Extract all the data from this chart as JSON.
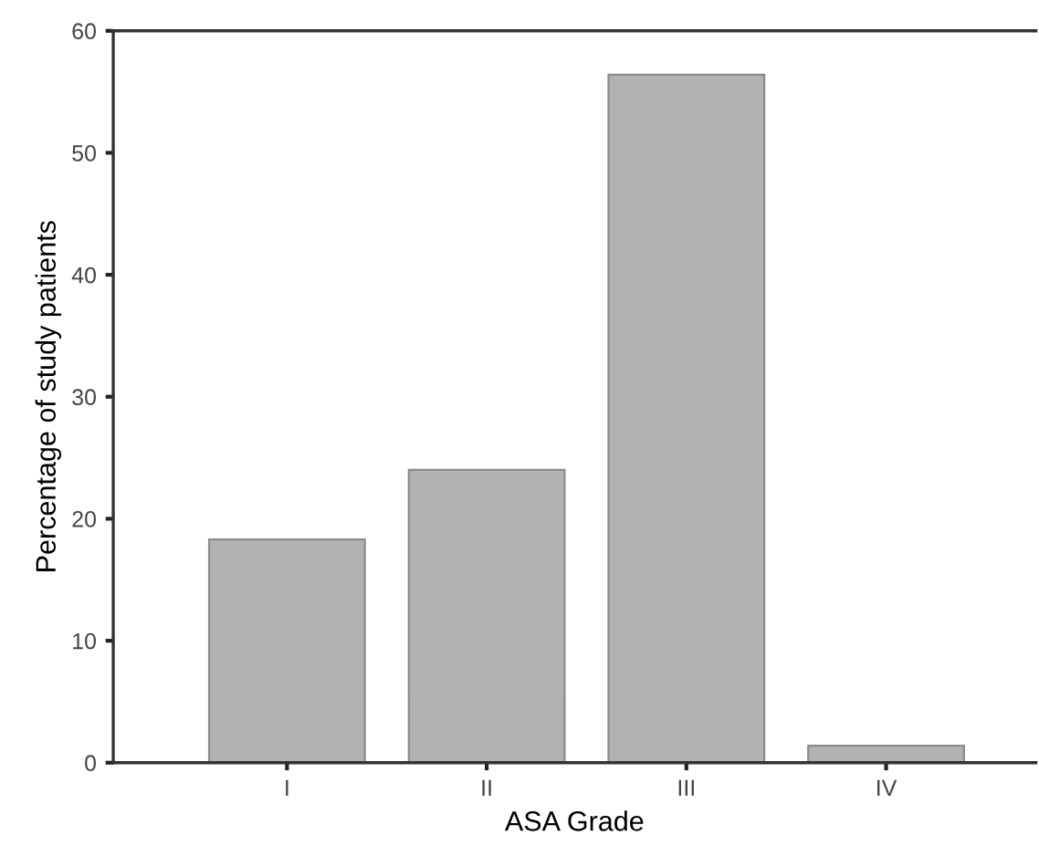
{
  "chart_data": {
    "type": "bar",
    "xlabel": "ASA Grade",
    "ylabel": "Percentage of study patients",
    "categories": [
      "I",
      "II",
      "III",
      "IV"
    ],
    "values": [
      18.3,
      24.0,
      56.4,
      1.4
    ],
    "color": "#b2b2b2",
    "ylim": [
      0,
      60
    ],
    "yticks": [
      0,
      10,
      20,
      30,
      40,
      50,
      60
    ],
    "grid": false,
    "legend": false
  }
}
